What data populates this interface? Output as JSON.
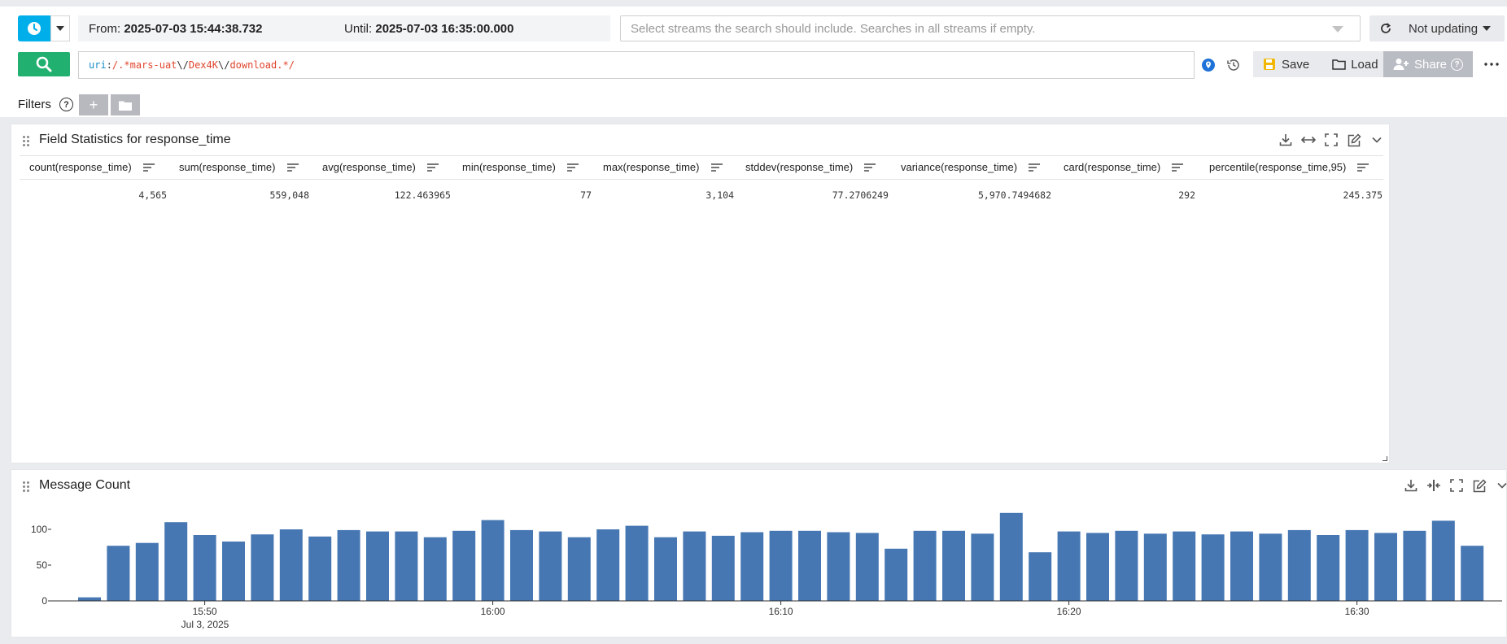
{
  "search": {
    "from_label": "From:",
    "from_value": "2025-07-03 15:44:38.732",
    "until_label": "Until:",
    "until_value": "2025-07-03 16:35:00.000",
    "streams_placeholder": "Select streams the search should include. Searches in all streams if empty.",
    "refresh_label": "Not updating",
    "query": {
      "field": "uri",
      "colon": ":",
      "slash_open": "/",
      "part1": ".*mars-uat",
      "esc1": "\\/",
      "part2": "Dex4K",
      "esc2": "\\/",
      "part3": "download.*",
      "slash_close": "/"
    },
    "save_label": "Save",
    "load_label": "Load",
    "share_label": "Share",
    "filters_label": "Filters",
    "filters_help": "?",
    "filter_add": "+"
  },
  "stats_widget": {
    "title": "Field Statistics for response_time",
    "columns": [
      {
        "header": "count(response_time)",
        "value": "4,565"
      },
      {
        "header": "sum(response_time)",
        "value": "559,048"
      },
      {
        "header": "avg(response_time)",
        "value": "122.463965"
      },
      {
        "header": "min(response_time)",
        "value": "77"
      },
      {
        "header": "max(response_time)",
        "value": "3,104"
      },
      {
        "header": "stddev(response_time)",
        "value": "77.2706249"
      },
      {
        "header": "variance(response_time)",
        "value": "5,970.7494682"
      },
      {
        "header": "card(response_time)",
        "value": "292"
      },
      {
        "header": "percentile(response_time,95)",
        "value": "245.375"
      }
    ]
  },
  "count_widget": {
    "title": "Message Count"
  },
  "colors": {
    "bar": "#4677b3",
    "accent": "#00aee9",
    "go": "#21b06f"
  },
  "chart_data": {
    "type": "bar",
    "title": "Message Count",
    "xlabel": "",
    "ylabel": "",
    "ylim": [
      0,
      130
    ],
    "y_ticks": [
      "0",
      "50",
      "100"
    ],
    "x_tick_labels": [
      "15:50",
      "16:00",
      "16:10",
      "16:20",
      "16:30"
    ],
    "x_sub_label": "Jul 3, 2025",
    "bar_minutes": [
      "15:46",
      "15:47",
      "15:48",
      "15:49",
      "15:50",
      "15:51",
      "15:52",
      "15:53",
      "15:54",
      "15:55",
      "15:56",
      "15:57",
      "15:58",
      "15:59",
      "16:00",
      "16:01",
      "16:02",
      "16:03",
      "16:04",
      "16:05",
      "16:06",
      "16:07",
      "16:08",
      "16:09",
      "16:10",
      "16:11",
      "16:12",
      "16:13",
      "16:14",
      "16:15",
      "16:16",
      "16:17",
      "16:18",
      "16:19",
      "16:20",
      "16:21",
      "16:22",
      "16:23",
      "16:24",
      "16:25",
      "16:26",
      "16:27",
      "16:28",
      "16:29",
      "16:30",
      "16:31",
      "16:32",
      "16:33",
      "16:34"
    ],
    "values": [
      5,
      77,
      81,
      110,
      92,
      83,
      93,
      100,
      90,
      99,
      97,
      97,
      89,
      98,
      113,
      99,
      97,
      89,
      100,
      105,
      89,
      97,
      91,
      96,
      98,
      98,
      96,
      95,
      73,
      98,
      98,
      94,
      123,
      68,
      97,
      95,
      98,
      94,
      97,
      93,
      97,
      94,
      99,
      92,
      99,
      95,
      98,
      112,
      77
    ]
  }
}
